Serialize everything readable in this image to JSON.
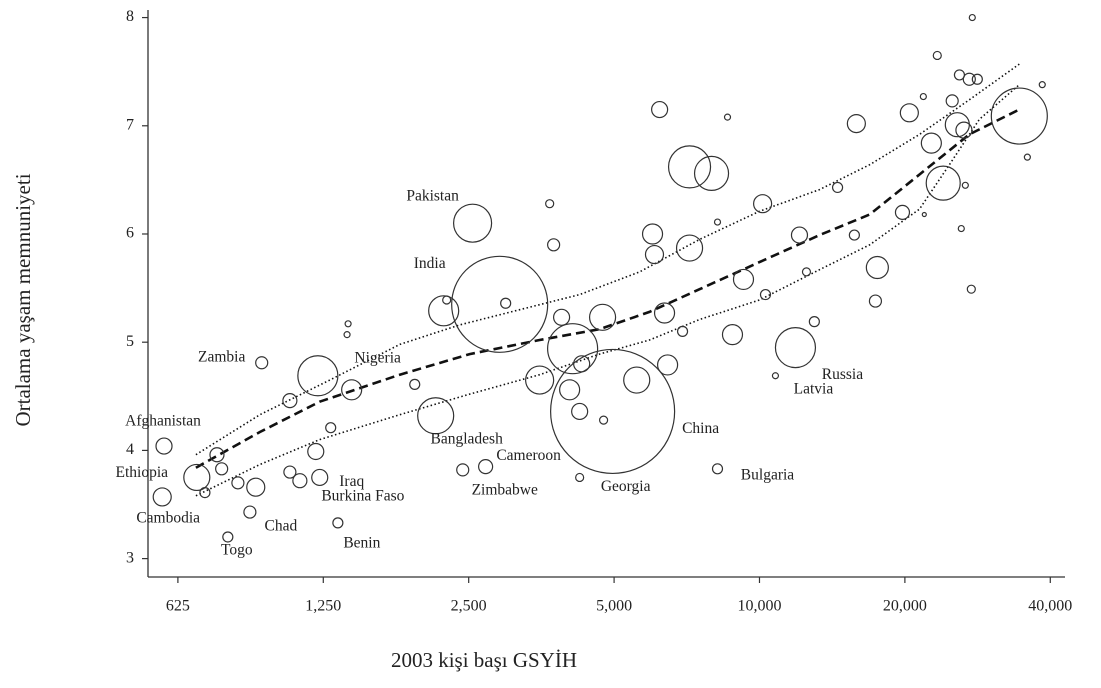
{
  "chart_data": {
    "type": "scatter",
    "xlabel": "2003 kişi başı GSYİH",
    "ylabel": "Ortalama yaşam memnuniyeti",
    "xscale": "log",
    "xlim": [
      542,
      42500
    ],
    "ylim": [
      2.83,
      8.07
    ],
    "xticks": [
      625,
      {
        "value": 1250,
        "label": "1,250"
      },
      {
        "value": 2500,
        "label": "2,500"
      },
      {
        "value": 5000,
        "label": "5,000"
      },
      {
        "value": 10000,
        "label": "10,000"
      },
      {
        "value": 20000,
        "label": "20,000"
      },
      {
        "value": 40000,
        "label": "40,000"
      }
    ],
    "yticks": [
      3,
      4,
      5,
      6,
      7,
      8
    ],
    "color": "#333333",
    "x": [
      585,
      684,
      580,
      793,
      881,
      932,
      1431,
      1229,
      1118,
      1340,
      2136,
      2547,
      2898,
      2430,
      2710,
      4243,
      4965,
      8186,
      11870,
      10790,
      753,
      770,
      711,
      832,
      906,
      1066,
      1218,
      1206,
      1066,
      1407,
      1400,
      1295,
      1933,
      2251,
      2219,
      2982,
      3678,
      3748,
      3893,
      3506,
      4103,
      4045,
      4733,
      4284,
      4756,
      4243,
      5570,
      6062,
      6006,
      6212,
      6360,
      6453,
      6930,
      7165,
      7165,
      7957,
      8586,
      8186,
      8792,
      9266,
      10150,
      10290,
      12100,
      12510,
      12990,
      14510,
      15720,
      15870,
      17540,
      17380,
      19770,
      20430,
      22690,
      23340,
      24010,
      25060,
      25680,
      25940,
      27190,
      27450,
      27580,
      26680,
      26170,
      28250,
      26500,
      34510,
      35860,
      38500,
      21840,
      21940
    ],
    "values": [
      4.04,
      3.75,
      3.57,
      3.2,
      3.43,
      4.81,
      4.56,
      3.75,
      3.72,
      3.33,
      4.32,
      6.1,
      5.35,
      3.82,
      3.85,
      3.75,
      4.36,
      3.83,
      4.95,
      4.69,
      3.96,
      3.83,
      3.61,
      3.7,
      3.66,
      4.46,
      4.69,
      3.99,
      3.8,
      5.17,
      5.07,
      4.21,
      4.61,
      5.39,
      5.29,
      5.36,
      6.28,
      5.9,
      5.23,
      4.65,
      4.94,
      4.56,
      5.23,
      4.8,
      4.28,
      4.36,
      4.65,
      5.81,
      6.0,
      7.15,
      5.27,
      4.79,
      5.1,
      5.87,
      6.62,
      6.56,
      7.08,
      6.11,
      5.07,
      5.58,
      6.28,
      5.44,
      5.99,
      5.65,
      5.19,
      6.43,
      5.99,
      7.02,
      5.69,
      5.38,
      6.2,
      7.12,
      6.84,
      7.65,
      6.47,
      7.23,
      7.01,
      7.47,
      7.43,
      5.49,
      8.0,
      6.45,
      6.05,
      7.43,
      6.96,
      7.09,
      6.71,
      7.38,
      7.27,
      6.18
    ],
    "sizes": [
      8,
      13,
      9,
      5,
      6,
      6,
      10,
      8,
      7,
      5,
      18,
      19,
      48,
      6,
      7,
      4,
      62,
      5,
      20,
      3,
      7,
      6,
      5,
      6,
      9,
      7,
      20,
      8,
      6,
      3,
      3,
      5,
      5,
      4,
      15,
      5,
      4,
      6,
      8,
      14,
      25,
      10,
      13,
      8,
      4,
      8,
      13,
      9,
      10,
      8,
      10,
      10,
      5,
      13,
      21,
      17,
      3,
      3,
      10,
      10,
      9,
      5,
      8,
      4,
      5,
      5,
      5,
      9,
      11,
      6,
      7,
      9,
      10,
      4,
      17,
      6,
      12,
      5,
      6,
      4,
      3,
      3,
      3,
      5,
      8,
      28,
      3,
      3,
      3,
      2
    ],
    "labels": [
      "Afghanistan",
      "Ethiopia",
      "Cambodia",
      "Togo",
      "Chad",
      "Zambia",
      "Nigeria",
      "Iraq",
      "Burkina Faso",
      "Benin",
      "Bangladesh",
      "Pakistan",
      "India",
      "Zimbabwe",
      "Cameroon",
      "Georgia",
      "China",
      "Bulgaria",
      "Russia",
      "Latvia",
      null,
      null,
      null,
      null,
      null,
      null,
      null,
      null,
      null,
      null,
      null,
      null,
      null,
      null,
      null,
      null,
      null,
      null,
      null,
      null,
      null,
      null,
      null,
      null,
      null,
      null,
      null,
      null,
      null,
      null,
      null,
      null,
      null,
      null,
      null,
      null,
      null,
      null,
      null,
      null,
      null,
      null,
      null,
      null,
      null,
      null,
      null,
      null,
      null,
      null,
      null,
      null,
      null,
      null,
      null,
      null,
      null,
      null,
      null,
      null,
      null,
      null,
      null,
      null,
      null,
      null
    ],
    "lines": [
      {
        "style": "dashed",
        "x": [
          681,
          924,
          1229,
          1800,
          2512,
          3506,
          4665,
          5920,
          7515,
          10000,
          13310,
          16910,
          21440,
          27190,
          34510
        ],
        "values": [
          3.84,
          4.17,
          4.45,
          4.7,
          4.89,
          5.02,
          5.12,
          5.28,
          5.49,
          5.74,
          5.99,
          6.18,
          6.55,
          6.92,
          7.15
        ]
      },
      {
        "style": "dotted",
        "x": [
          681,
          924,
          1289,
          1800,
          2395,
          3188,
          4243,
          5646,
          7515,
          10000,
          13310,
          16910,
          21440,
          27190,
          34510
        ],
        "values": [
          3.96,
          4.33,
          4.65,
          4.98,
          5.16,
          5.3,
          5.44,
          5.65,
          5.95,
          6.21,
          6.41,
          6.64,
          6.92,
          7.24,
          7.57
        ]
      },
      {
        "style": "dotted",
        "x": [
          681,
          924,
          1229,
          1800,
          2512,
          3506,
          4665,
          5920,
          7515,
          10000,
          13310,
          16910,
          21440,
          24730,
          28530,
          34510
        ],
        "values": [
          3.58,
          3.87,
          4.1,
          4.33,
          4.52,
          4.7,
          4.89,
          5.02,
          5.21,
          5.39,
          5.67,
          5.9,
          6.23,
          6.64,
          7.06,
          7.38
        ]
      }
    ]
  }
}
